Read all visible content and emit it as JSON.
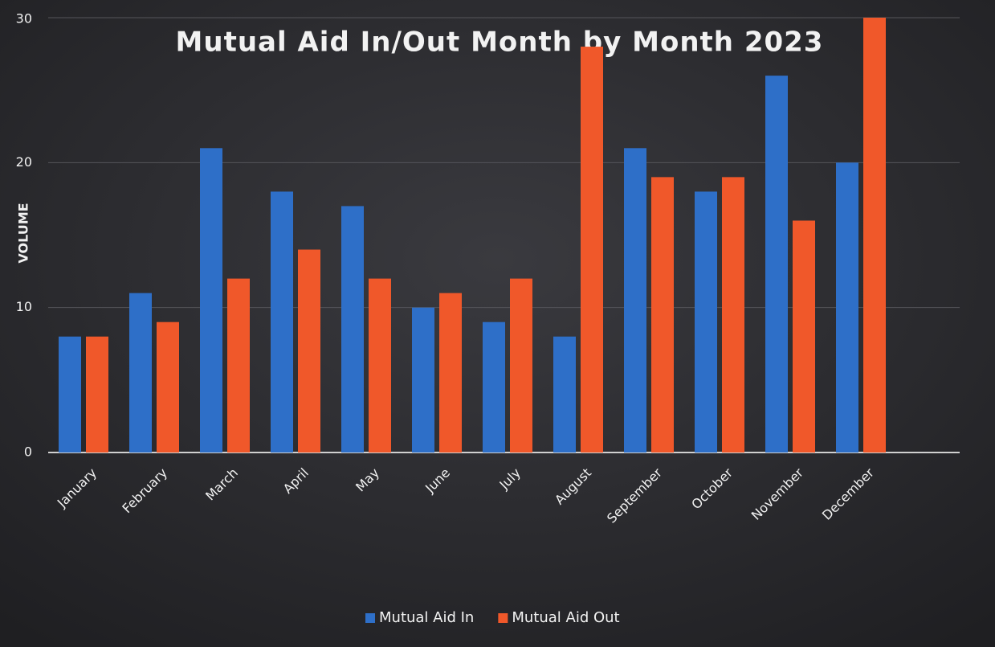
{
  "chart_data": {
    "type": "bar",
    "title": "Mutual Aid In/Out Month by Month 2023",
    "y_label": "VOLUME",
    "categories": [
      "January",
      "February",
      "March",
      "April",
      "May",
      "June",
      "July",
      "August",
      "September",
      "October",
      "November",
      "December"
    ],
    "series": [
      {
        "name": "Mutual Aid In",
        "color": "#2e6fc8",
        "values": [
          8,
          11,
          21,
          18,
          17,
          10,
          9,
          8,
          21,
          18,
          26,
          20
        ]
      },
      {
        "name": "Mutual Aid Out",
        "color": "#f0582a",
        "values": [
          8,
          9,
          12,
          14,
          12,
          11,
          12,
          28,
          19,
          19,
          16,
          30
        ]
      }
    ],
    "ylim": [
      0,
      30
    ],
    "yticks": [
      0,
      10,
      20,
      30
    ],
    "grid": true,
    "legend": "bottom"
  }
}
